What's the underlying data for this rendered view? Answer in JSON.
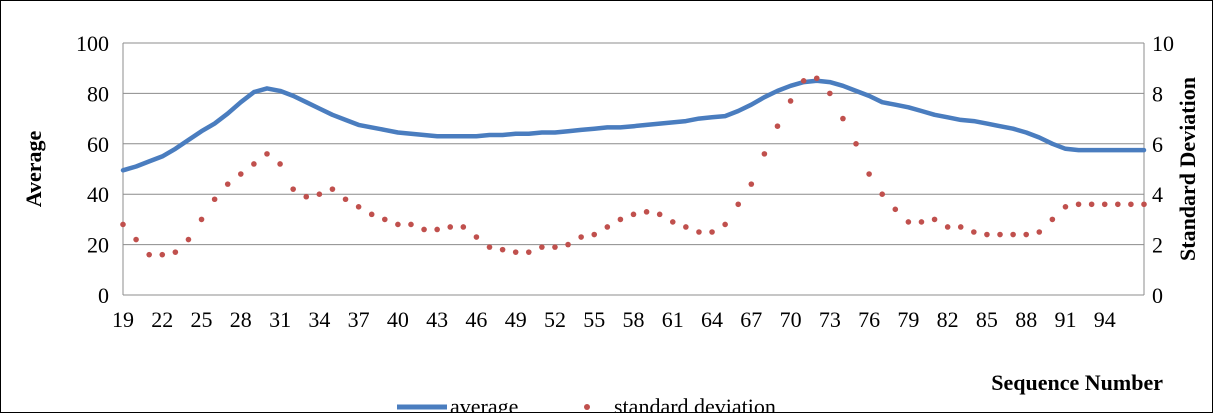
{
  "chart_data": {
    "type": "line",
    "xlabel": "Sequence Number",
    "ylabel": "Average",
    "y2label": "Standard Deviation",
    "x_tick_labels": [
      "19",
      "22",
      "25",
      "28",
      "31",
      "34",
      "37",
      "40",
      "43",
      "46",
      "49",
      "52",
      "55",
      "58",
      "61",
      "64",
      "67",
      "70",
      "73",
      "76",
      "79",
      "82",
      "85",
      "88",
      "91",
      "94"
    ],
    "x_range": [
      19,
      97
    ],
    "ylim": [
      0,
      100
    ],
    "y_ticks": [
      "0",
      "20",
      "40",
      "60",
      "80",
      "100"
    ],
    "y2lim": [
      0,
      10
    ],
    "y2_ticks": [
      "0",
      "2",
      "4",
      "6",
      "8",
      "10"
    ],
    "grid": "horizontal",
    "legend_position": "bottom",
    "series": [
      {
        "name": "average",
        "axis": "left",
        "style": "line",
        "color": "#4a7dbf",
        "x": [
          19,
          20,
          21,
          22,
          23,
          24,
          25,
          26,
          27,
          28,
          29,
          30,
          31,
          32,
          33,
          34,
          35,
          36,
          37,
          38,
          39,
          40,
          41,
          42,
          43,
          44,
          45,
          46,
          47,
          48,
          49,
          50,
          51,
          52,
          53,
          54,
          55,
          56,
          57,
          58,
          59,
          60,
          61,
          62,
          63,
          64,
          65,
          66,
          67,
          68,
          69,
          70,
          71,
          72,
          73,
          74,
          75,
          76,
          77,
          78,
          79,
          80,
          81,
          82,
          83,
          84,
          85,
          86,
          87,
          88,
          89,
          90,
          91,
          92,
          93,
          94,
          95,
          96,
          97
        ],
        "values": [
          49.5,
          51,
          53,
          55,
          58,
          61.5,
          65,
          68,
          72,
          76.5,
          80.5,
          82,
          81,
          79,
          76.5,
          74,
          71.5,
          69.5,
          67.5,
          66.5,
          65.5,
          64.5,
          64,
          63.5,
          63,
          63,
          63,
          63,
          63.5,
          63.5,
          64,
          64,
          64.5,
          64.5,
          65,
          65.5,
          66,
          66.5,
          66.5,
          67,
          67.5,
          68,
          68.5,
          69,
          70,
          70.5,
          71,
          73,
          75.5,
          78.5,
          81,
          83,
          84.5,
          85,
          84.5,
          83,
          81,
          79,
          76.5,
          75.5,
          74.5,
          73,
          71.5,
          70.5,
          69.5,
          69,
          68,
          67,
          66,
          64.5,
          62.5,
          60,
          58,
          57.5,
          57.5,
          57.5,
          57.5,
          57.5,
          57.5
        ]
      },
      {
        "name": "standard deviation",
        "axis": "right",
        "style": "dots",
        "color": "#c0504d",
        "x": [
          19,
          20,
          21,
          22,
          23,
          24,
          25,
          26,
          27,
          28,
          29,
          30,
          31,
          32,
          33,
          34,
          35,
          36,
          37,
          38,
          39,
          40,
          41,
          42,
          43,
          44,
          45,
          46,
          47,
          48,
          49,
          50,
          51,
          52,
          53,
          54,
          55,
          56,
          57,
          58,
          59,
          60,
          61,
          62,
          63,
          64,
          65,
          66,
          67,
          68,
          69,
          70,
          71,
          72,
          73,
          74,
          75,
          76,
          77,
          78,
          79,
          80,
          81,
          82,
          83,
          84,
          85,
          86,
          87,
          88,
          89,
          90,
          91,
          92,
          93,
          94,
          95,
          96,
          97
        ],
        "values": [
          2.8,
          2.2,
          1.6,
          1.6,
          1.7,
          2.2,
          3.0,
          3.8,
          4.4,
          4.8,
          5.2,
          5.6,
          5.2,
          4.2,
          3.9,
          4.0,
          4.2,
          3.8,
          3.5,
          3.2,
          3.0,
          2.8,
          2.8,
          2.6,
          2.6,
          2.7,
          2.7,
          2.3,
          1.9,
          1.8,
          1.7,
          1.7,
          1.9,
          1.9,
          2.0,
          2.3,
          2.4,
          2.7,
          3.0,
          3.2,
          3.3,
          3.2,
          2.9,
          2.7,
          2.5,
          2.5,
          2.8,
          3.6,
          4.4,
          5.6,
          6.7,
          7.7,
          8.5,
          8.6,
          8.0,
          7.0,
          6.0,
          4.8,
          4.0,
          3.4,
          2.9,
          2.9,
          3.0,
          2.7,
          2.7,
          2.5,
          2.4,
          2.4,
          2.4,
          2.4,
          2.5,
          3.0,
          3.5,
          3.6,
          3.6,
          3.6,
          3.6,
          3.6,
          3.6
        ]
      }
    ]
  }
}
